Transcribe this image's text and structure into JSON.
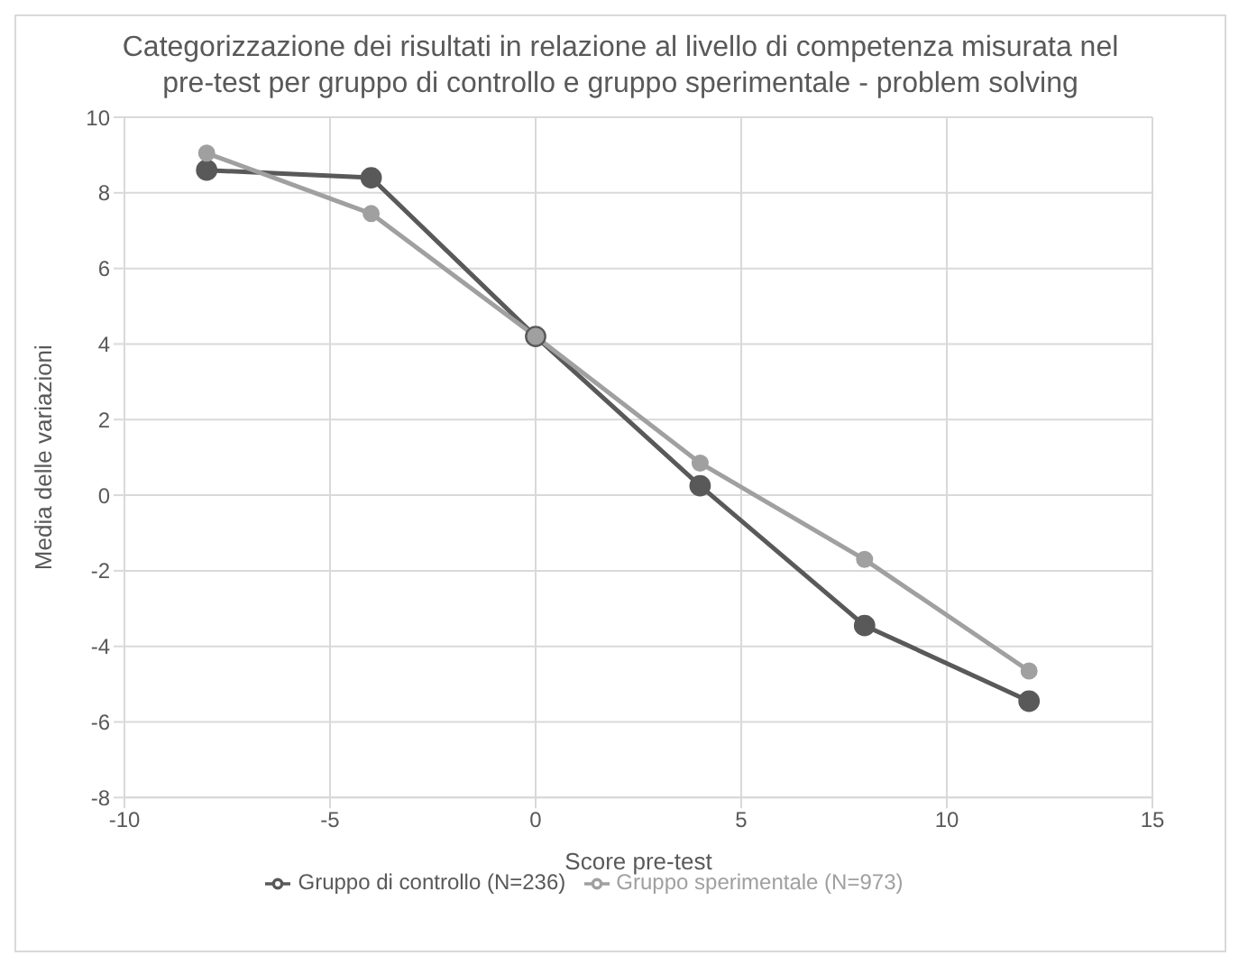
{
  "chart_data": {
    "type": "line",
    "title": "Categorizzazione dei risultati in relazione al livello di competenza misurata nel pre-test per gruppo di controllo e gruppo sperimentale - problem solving",
    "xlabel": "Score pre-test",
    "ylabel": "Media delle variazioni",
    "x": [
      -8,
      -4,
      0,
      4,
      8,
      12
    ],
    "series": [
      {
        "name": "Gruppo di controllo (N=236)",
        "color": "#595959",
        "values": [
          8.6,
          8.4,
          4.2,
          0.25,
          -3.45,
          -5.45
        ]
      },
      {
        "name": "Gruppo sperimentale (N=973)",
        "color": "#a0a0a0",
        "values": [
          9.05,
          7.45,
          4.2,
          0.85,
          -1.7,
          -4.65
        ]
      }
    ],
    "xlim": [
      -10,
      15
    ],
    "xticks": [
      -10,
      -5,
      0,
      5,
      10,
      15
    ],
    "ylim": [
      -8,
      10
    ],
    "yticks": [
      -8,
      -6,
      -4,
      -2,
      0,
      2,
      4,
      6,
      8,
      10
    ],
    "grid": true,
    "legend": "bottom",
    "marker": "circle",
    "line_style": "solid"
  }
}
